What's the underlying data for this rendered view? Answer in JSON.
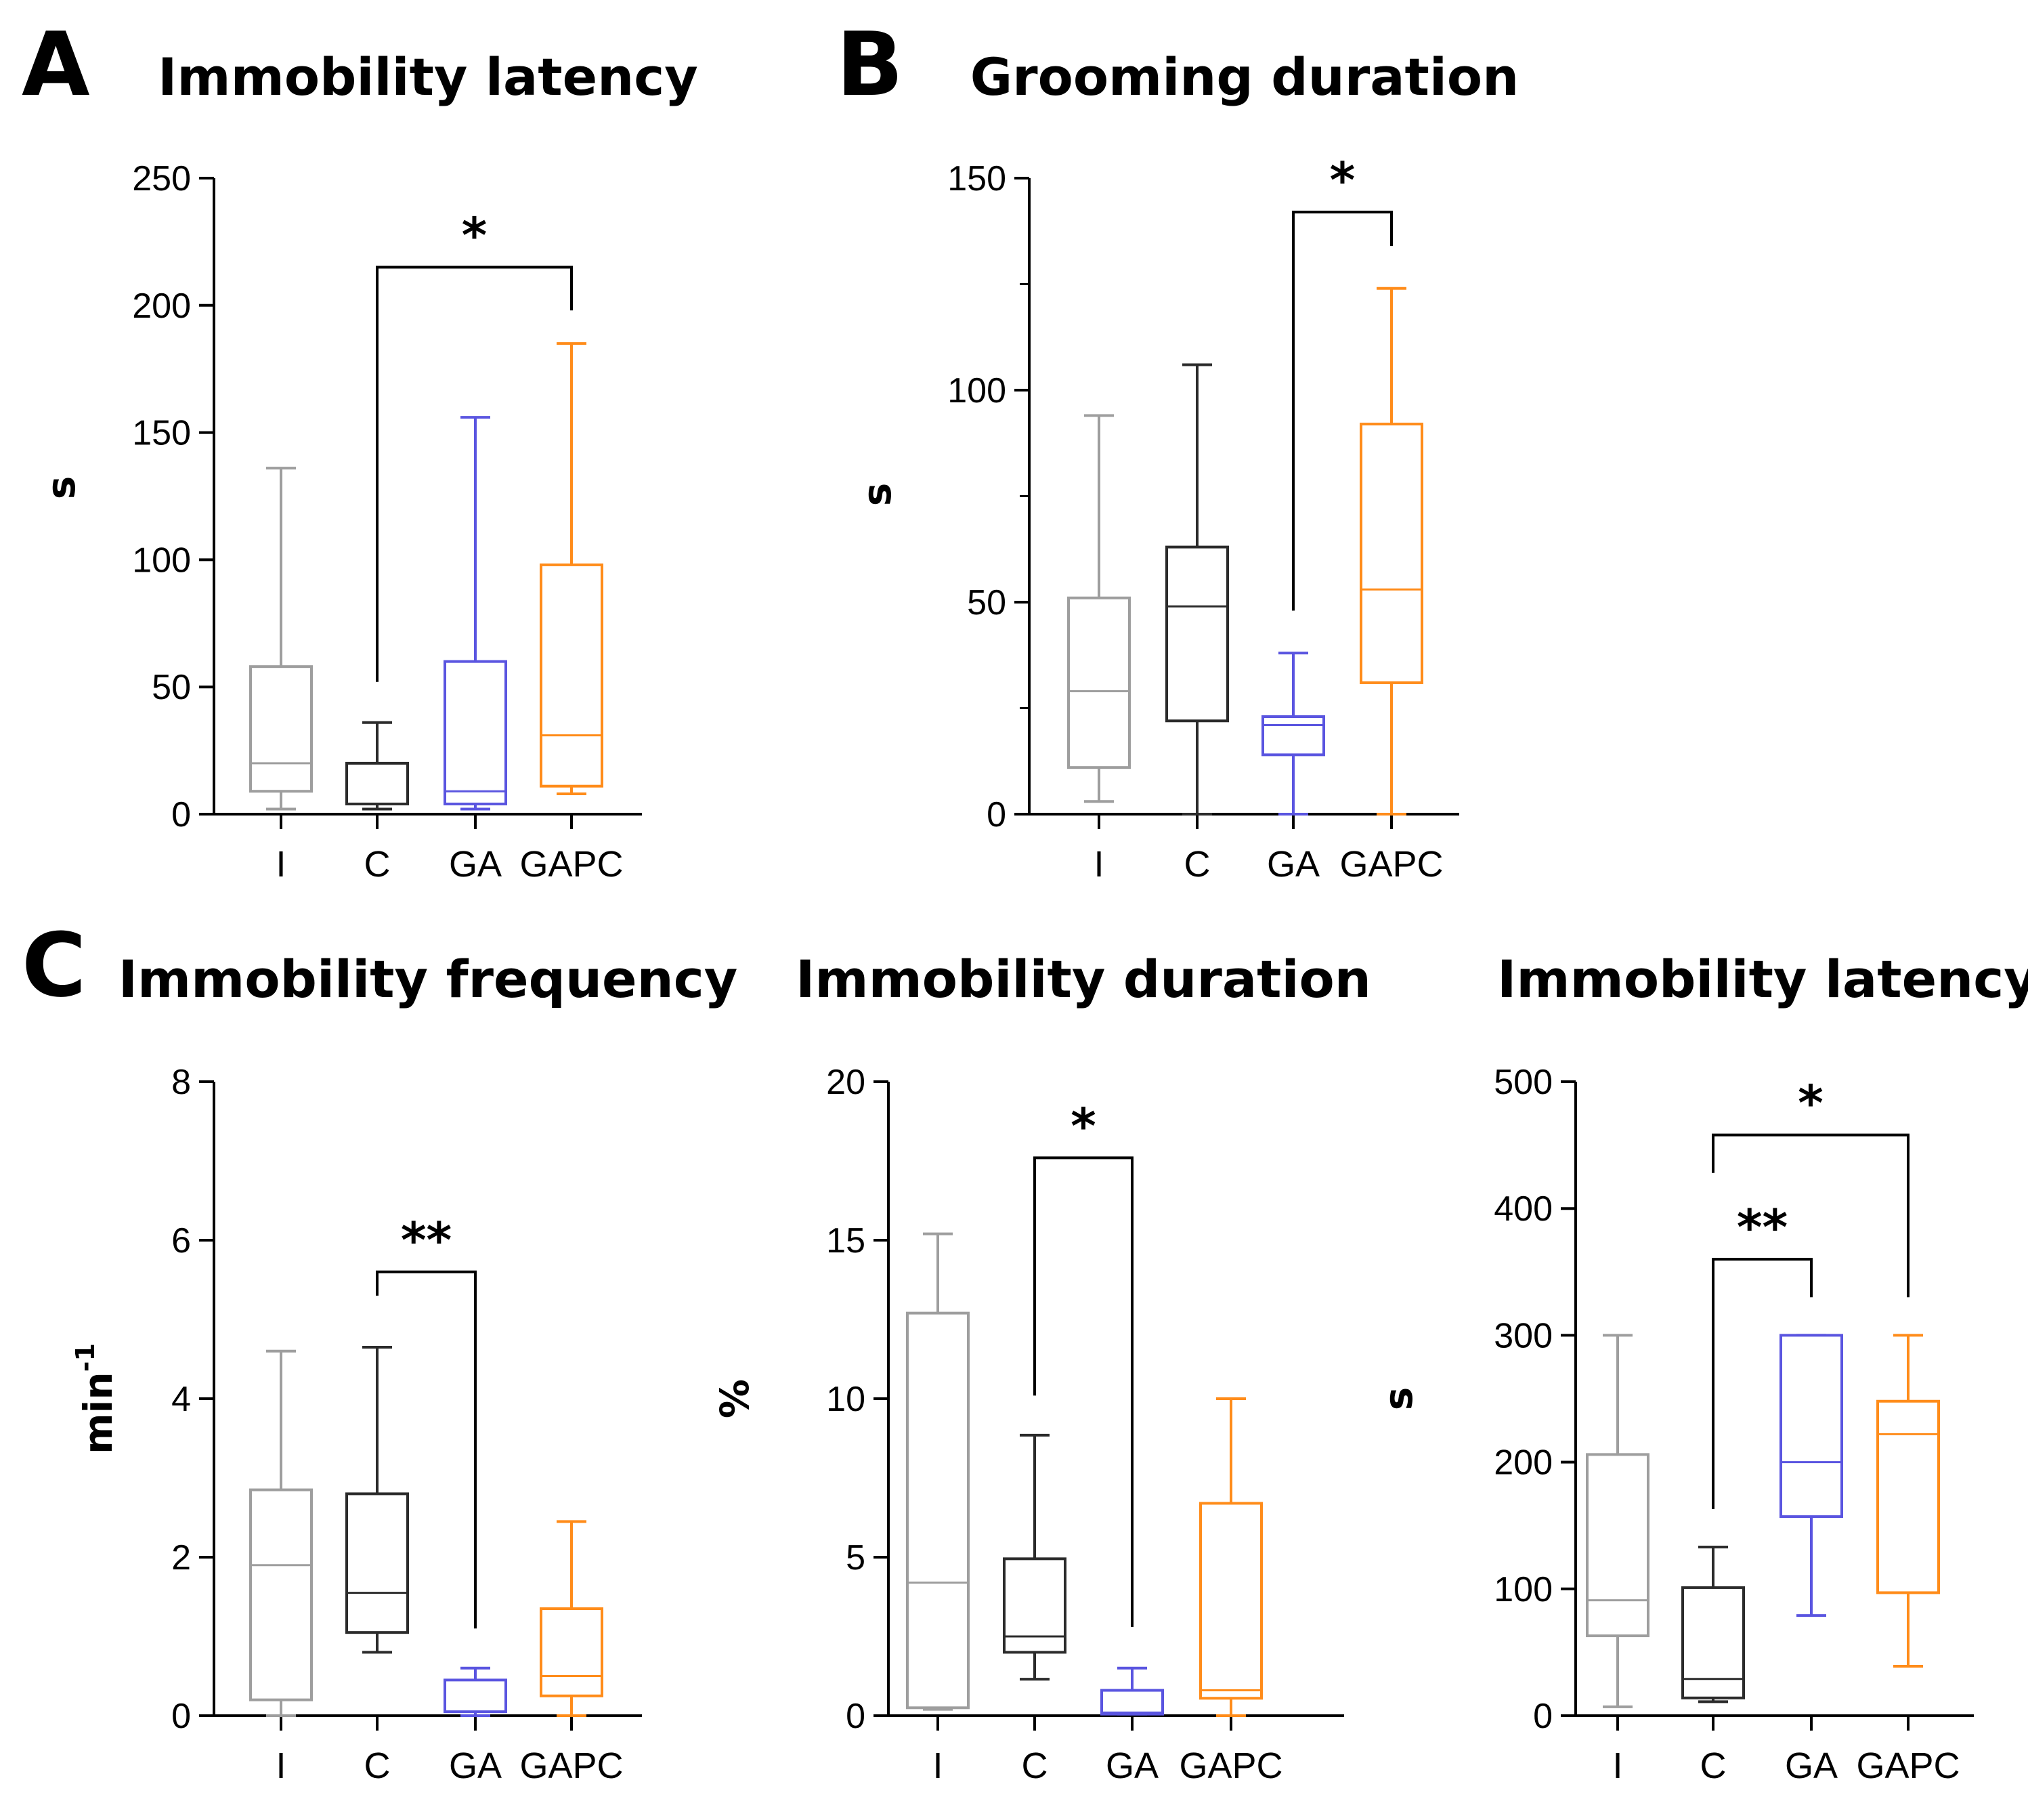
{
  "panels": [
    {
      "letter": "A"
    },
    {
      "letter": "B"
    },
    {
      "letter": "C"
    }
  ],
  "colors": {
    "I": "#9e9e9e",
    "C": "#2b2b2b",
    "GA": "#5a55e0",
    "GAPC": "#ff8c1a",
    "axis": "#000000"
  },
  "chart_data": [
    {
      "type": "box",
      "title": "Immobility latency",
      "xlabel": "",
      "ylabel": "s",
      "ylim": [
        0,
        250
      ],
      "yticks": [
        0,
        50,
        100,
        150,
        200,
        250
      ],
      "ytick_labels": [
        "0",
        "50",
        "100",
        "150",
        "200",
        "250"
      ],
      "minor_ticks": false,
      "categories": [
        "I",
        "C",
        "GA",
        "GAPC"
      ],
      "boxes": [
        {
          "group": "I",
          "min": 2,
          "q1": 9,
          "median": 20,
          "q3": 58,
          "max": 136
        },
        {
          "group": "C",
          "min": 2,
          "q1": 4,
          "median": 4,
          "q3": 20,
          "max": 36
        },
        {
          "group": "GA",
          "min": 2,
          "q1": 4,
          "median": 9,
          "q3": 60,
          "max": 156
        },
        {
          "group": "GAPC",
          "min": 8,
          "q1": 11,
          "median": 31,
          "q3": 98,
          "max": 185
        }
      ],
      "significance": [
        {
          "from": "C",
          "to": "GAPC",
          "label": "*",
          "bar_y": 215,
          "left_end": 52,
          "right_end": 198
        }
      ]
    },
    {
      "type": "box",
      "title": "Grooming duration",
      "xlabel": "",
      "ylabel": "s",
      "ylim": [
        0,
        150
      ],
      "yticks": [
        0,
        50,
        100,
        150
      ],
      "ytick_labels": [
        "0",
        "50",
        "100",
        "150"
      ],
      "minor_ticks": true,
      "categories": [
        "I",
        "C",
        "GA",
        "GAPC"
      ],
      "boxes": [
        {
          "group": "I",
          "min": 3,
          "q1": 11,
          "median": 29,
          "q3": 51,
          "max": 94
        },
        {
          "group": "C",
          "min": 0,
          "q1": 22,
          "median": 49,
          "q3": 63,
          "max": 106
        },
        {
          "group": "GA",
          "min": 0,
          "q1": 14,
          "median": 21,
          "q3": 23,
          "max": 38
        },
        {
          "group": "GAPC",
          "min": 0,
          "q1": 31,
          "median": 53,
          "q3": 92,
          "max": 124
        }
      ],
      "significance": [
        {
          "from": "GA",
          "to": "GAPC",
          "label": "*",
          "bar_y": 142,
          "left_end": 48,
          "right_end": 134
        }
      ]
    },
    {
      "type": "box",
      "title": "Immobility frequency",
      "xlabel": "",
      "ylabel": "min",
      "ylabel_superscript": "-1",
      "ylim": [
        0,
        8
      ],
      "yticks": [
        0,
        2,
        4,
        6,
        8
      ],
      "ytick_labels": [
        "0",
        "2",
        "4",
        "6",
        "8"
      ],
      "minor_ticks": false,
      "categories": [
        "I",
        "C",
        "GA",
        "GAPC"
      ],
      "boxes": [
        {
          "group": "I",
          "min": 0,
          "q1": 0.2,
          "median": 1.9,
          "q3": 2.85,
          "max": 4.6
        },
        {
          "group": "C",
          "min": 0.8,
          "q1": 1.05,
          "median": 1.55,
          "q3": 2.8,
          "max": 4.65
        },
        {
          "group": "GA",
          "min": 0,
          "q1": 0.05,
          "median": 0.05,
          "q3": 0.45,
          "max": 0.6
        },
        {
          "group": "GAPC",
          "min": 0,
          "q1": 0.25,
          "median": 0.5,
          "q3": 1.35,
          "max": 2.45
        }
      ],
      "significance": [
        {
          "from": "C",
          "to": "GA",
          "label": "**",
          "bar_y": 5.6,
          "left_end": 5.3,
          "right_end": 1.1
        }
      ]
    },
    {
      "type": "box",
      "title": "Immobility duration",
      "xlabel": "",
      "ylabel": "%",
      "ylim": [
        0,
        20
      ],
      "yticks": [
        0,
        5,
        10,
        15,
        20
      ],
      "ytick_labels": [
        "0",
        "5",
        "10",
        "15",
        "20"
      ],
      "minor_ticks": false,
      "categories": [
        "I",
        "C",
        "GA",
        "GAPC"
      ],
      "boxes": [
        {
          "group": "I",
          "min": 0.2,
          "q1": 0.25,
          "median": 4.2,
          "q3": 12.7,
          "max": 15.2
        },
        {
          "group": "C",
          "min": 1.15,
          "q1": 2.0,
          "median": 2.5,
          "q3": 4.95,
          "max": 8.85
        },
        {
          "group": "GA",
          "min": 0.05,
          "q1": 0.05,
          "median": 0.1,
          "q3": 0.8,
          "max": 1.5
        },
        {
          "group": "GAPC",
          "min": 0,
          "q1": 0.55,
          "median": 0.8,
          "q3": 6.7,
          "max": 10.0
        }
      ],
      "significance": [
        {
          "from": "C",
          "to": "GA",
          "label": "*",
          "bar_y": 17.6,
          "left_end": 10.1,
          "right_end": 2.8
        }
      ]
    },
    {
      "type": "box",
      "title": "Immobility latency",
      "xlabel": "",
      "ylabel": "s",
      "ylim": [
        0,
        500
      ],
      "yticks": [
        0,
        100,
        200,
        300,
        400,
        500
      ],
      "ytick_labels": [
        "0",
        "100",
        "200",
        "300",
        "400",
        "500"
      ],
      "minor_ticks": false,
      "categories": [
        "I",
        "C",
        "GA",
        "GAPC"
      ],
      "boxes": [
        {
          "group": "I",
          "min": 7,
          "q1": 63,
          "median": 91,
          "q3": 206,
          "max": 300
        },
        {
          "group": "C",
          "min": 11,
          "q1": 14,
          "median": 29,
          "q3": 101,
          "max": 133
        },
        {
          "group": "GA",
          "min": 79,
          "q1": 157,
          "median": 200,
          "q3": 300,
          "max": 300
        },
        {
          "group": "GAPC",
          "min": 39,
          "q1": 97,
          "median": 222,
          "q3": 248,
          "max": 300
        }
      ],
      "significance": [
        {
          "from": "C",
          "to": "GA",
          "label": "**",
          "bar_y": 360,
          "left_end": 163,
          "right_end": 330
        },
        {
          "from": "C",
          "to": "GAPC",
          "label": "*",
          "bar_y": 458,
          "left_end": 428,
          "right_end": 330
        }
      ]
    }
  ]
}
